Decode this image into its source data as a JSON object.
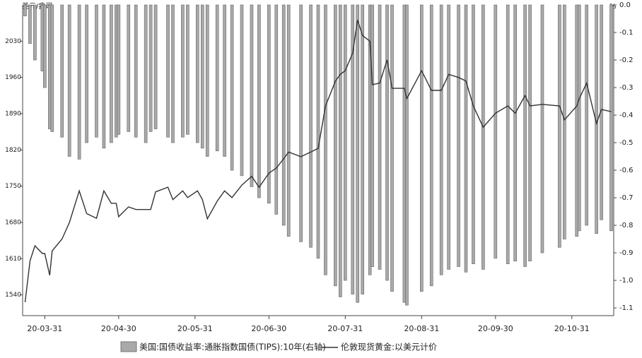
{
  "chart_data": {
    "type": "bar-line",
    "y_label": "美元/盎司",
    "y2_label": "%",
    "x": [
      "2020-03-23",
      "2020-03-25",
      "2020-03-27",
      "2020-03-30",
      "2020-03-31",
      "2020-04-02",
      "2020-04-03",
      "2020-04-07",
      "2020-04-10",
      "2020-04-14",
      "2020-04-17",
      "2020-04-21",
      "2020-04-24",
      "2020-04-27",
      "2020-04-29",
      "2020-04-30",
      "2020-05-04",
      "2020-05-07",
      "2020-05-11",
      "2020-05-13",
      "2020-05-15",
      "2020-05-20",
      "2020-05-22",
      "2020-05-26",
      "2020-05-28",
      "2020-06-01",
      "2020-06-03",
      "2020-06-05",
      "2020-06-09",
      "2020-06-12",
      "2020-06-15",
      "2020-06-19",
      "2020-06-23",
      "2020-06-26",
      "2020-06-30",
      "2020-07-03",
      "2020-07-06",
      "2020-07-08",
      "2020-07-13",
      "2020-07-17",
      "2020-07-20",
      "2020-07-23",
      "2020-07-27",
      "2020-07-29",
      "2020-07-31",
      "2020-08-03",
      "2020-08-05",
      "2020-08-07",
      "2020-08-10",
      "2020-08-11",
      "2020-08-14",
      "2020-08-17",
      "2020-08-19",
      "2020-08-24",
      "2020-08-25",
      "2020-08-31",
      "2020-09-04",
      "2020-09-08",
      "2020-09-11",
      "2020-09-15",
      "2020-09-18",
      "2020-09-21",
      "2020-09-25",
      "2020-09-30",
      "2020-10-05",
      "2020-10-08",
      "2020-10-12",
      "2020-10-14",
      "2020-10-19",
      "2020-10-26",
      "2020-10-28",
      "2020-11-02",
      "2020-11-03",
      "2020-11-06",
      "2020-11-10",
      "2020-11-12",
      "2020-11-16"
    ],
    "series": [
      {
        "name": "美国:国债收益率:通胀指数国债(TIPS):10年(右轴)",
        "kind": "bar",
        "axis": "y2",
        "color": "#a9a9a9",
        "values": [
          -0.04,
          -0.14,
          -0.2,
          -0.24,
          -0.3,
          -0.45,
          -0.46,
          -0.48,
          -0.55,
          -0.56,
          -0.5,
          -0.48,
          -0.52,
          -0.5,
          -0.48,
          -0.47,
          -0.46,
          -0.48,
          -0.5,
          -0.46,
          -0.45,
          -0.48,
          -0.5,
          -0.48,
          -0.47,
          -0.5,
          -0.52,
          -0.55,
          -0.53,
          -0.55,
          -0.6,
          -0.62,
          -0.66,
          -0.7,
          -0.72,
          -0.76,
          -0.8,
          -0.84,
          -0.86,
          -0.88,
          -0.92,
          -0.98,
          -1.02,
          -1.06,
          -1.0,
          -1.05,
          -1.08,
          -1.05,
          -0.98,
          -0.95,
          -0.96,
          -1.0,
          -1.04,
          -1.08,
          -1.09,
          -1.04,
          -1.02,
          -0.98,
          -0.96,
          -0.95,
          -0.97,
          -0.94,
          -0.96,
          -0.92,
          -0.94,
          -0.93,
          -0.95,
          -0.93,
          -0.9,
          -0.88,
          -0.85,
          -0.84,
          -0.82,
          -0.8,
          -0.83,
          -0.78,
          -0.82
        ]
      },
      {
        "name": "伦敦现货黄金:以美元计价",
        "kind": "line",
        "axis": "y",
        "color": "#333333",
        "values": [
          1526,
          1606,
          1635,
          1620,
          1620,
          1578,
          1625,
          1648,
          1680,
          1741,
          1697,
          1688,
          1741,
          1717,
          1717,
          1691,
          1710,
          1705,
          1705,
          1705,
          1739,
          1748,
          1724,
          1741,
          1728,
          1741,
          1724,
          1687,
          1721,
          1741,
          1728,
          1752,
          1769,
          1748,
          1775,
          1785,
          1803,
          1816,
          1807,
          1816,
          1823,
          1905,
          1953,
          1966,
          1973,
          2007,
          2071,
          2041,
          2030,
          1946,
          1949,
          1994,
          1939,
          1939,
          1919,
          1973,
          1935,
          1935,
          1966,
          1960,
          1953,
          1905,
          1864,
          1891,
          1905,
          1891,
          1925,
          1905,
          1908,
          1905,
          1878,
          1905,
          1919,
          1949,
          1871,
          1898,
          1894
        ]
      }
    ],
    "xlim": [
      "2020-03-22",
      "2020-11-17"
    ],
    "xticks": [
      {
        "value": "2020-03-31",
        "label": "20-03-31"
      },
      {
        "value": "2020-04-30",
        "label": "20-04-30"
      },
      {
        "value": "2020-05-31",
        "label": "20-05-31"
      },
      {
        "value": "2020-06-30",
        "label": "20-06-30"
      },
      {
        "value": "2020-07-31",
        "label": "20-07-31"
      },
      {
        "value": "2020-08-31",
        "label": "20-08-31"
      },
      {
        "value": "2020-09-30",
        "label": "20-09-30"
      },
      {
        "value": "2020-10-31",
        "label": "20-10-31"
      }
    ],
    "ylim": [
      1500,
      2100
    ],
    "yticks": [
      1540,
      1610,
      1680,
      1750,
      1820,
      1890,
      1960,
      2030
    ],
    "y2lim": [
      -1.128,
      0
    ],
    "y2ticks": [
      {
        "value": 0,
        "label": "0.0"
      },
      -0.1,
      -0.2,
      -0.3,
      -0.4,
      -0.5,
      -0.6,
      -0.7,
      -0.8,
      -0.9,
      {
        "value": -1,
        "label": "-1.0"
      },
      -1.1
    ],
    "legend": "bottom"
  }
}
